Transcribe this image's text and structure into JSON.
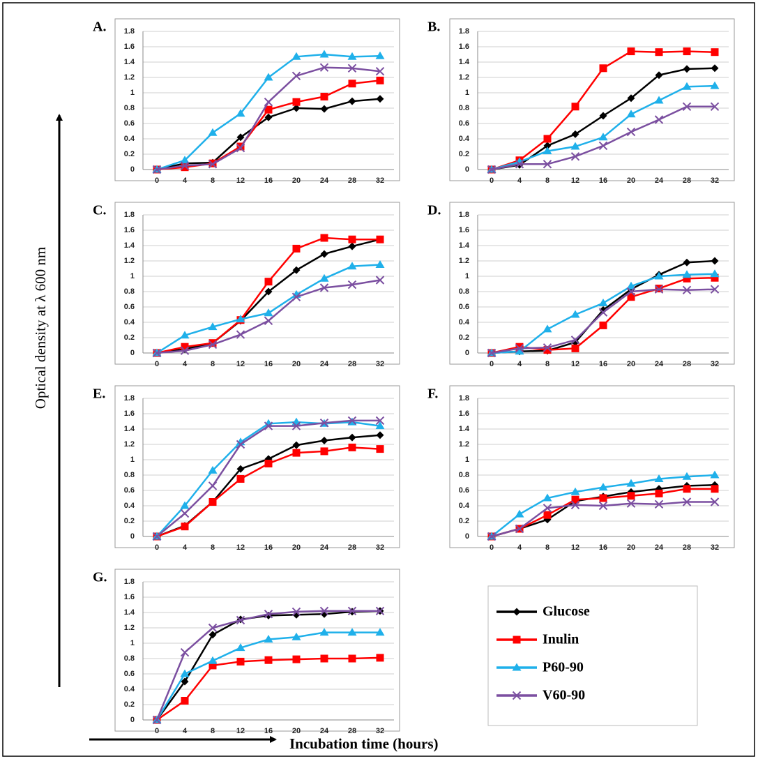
{
  "y_label": "Optical density at λ 600 nm",
  "x_label": "Incubation time (hours)",
  "legend": {
    "series": [
      {
        "name": "Glucose",
        "color": "#000000",
        "marker": "diamond"
      },
      {
        "name": "Inulin",
        "color": "#ff0000",
        "marker": "square"
      },
      {
        "name": "P60-90",
        "color": "#1fb0ea",
        "marker": "triangle"
      },
      {
        "name": "V60-90",
        "color": "#7b4fa0",
        "marker": "x"
      }
    ]
  },
  "chart_data": [
    {
      "type": "line",
      "title": "A.",
      "categories": [
        0,
        4,
        8,
        12,
        16,
        20,
        24,
        28,
        32
      ],
      "ylim": [
        0,
        1.8
      ],
      "yticks": [
        0,
        0.2,
        0.4,
        0.6,
        0.8,
        1,
        1.2,
        1.4,
        1.6,
        1.8
      ],
      "grid": true,
      "series": [
        {
          "values": [
            0,
            0.08,
            0.09,
            0.42,
            0.68,
            0.8,
            0.79,
            0.89,
            0.92
          ]
        },
        {
          "values": [
            0,
            0.03,
            0.08,
            0.3,
            0.78,
            0.88,
            0.95,
            1.12,
            1.16
          ]
        },
        {
          "values": [
            0,
            0.12,
            0.48,
            0.73,
            1.2,
            1.47,
            1.5,
            1.47,
            1.48
          ]
        },
        {
          "values": [
            0,
            0.05,
            0.07,
            0.28,
            0.88,
            1.22,
            1.33,
            1.32,
            1.28
          ]
        }
      ]
    },
    {
      "type": "line",
      "title": "B.",
      "categories": [
        0,
        4,
        8,
        12,
        16,
        20,
        24,
        28,
        32
      ],
      "ylim": [
        0,
        1.8
      ],
      "yticks": [
        0,
        0.2,
        0.4,
        0.6,
        0.8,
        1,
        1.2,
        1.4,
        1.6,
        1.8
      ],
      "grid": true,
      "series": [
        {
          "values": [
            0,
            0.06,
            0.31,
            0.46,
            0.7,
            0.93,
            1.23,
            1.31,
            1.32
          ]
        },
        {
          "values": [
            0,
            0.12,
            0.4,
            0.82,
            1.32,
            1.54,
            1.53,
            1.54,
            1.53
          ]
        },
        {
          "values": [
            0,
            0.1,
            0.24,
            0.3,
            0.42,
            0.72,
            0.9,
            1.08,
            1.09
          ]
        },
        {
          "values": [
            0,
            0.07,
            0.07,
            0.17,
            0.31,
            0.49,
            0.65,
            0.82,
            0.82
          ]
        }
      ]
    },
    {
      "type": "line",
      "title": "C.",
      "categories": [
        0,
        4,
        8,
        12,
        16,
        20,
        24,
        28,
        32
      ],
      "ylim": [
        0,
        1.8
      ],
      "yticks": [
        0,
        0.2,
        0.4,
        0.6,
        0.8,
        1,
        1.2,
        1.4,
        1.6,
        1.8
      ],
      "grid": true,
      "series": [
        {
          "values": [
            0,
            0.05,
            0.13,
            0.42,
            0.8,
            1.08,
            1.29,
            1.39,
            1.48
          ]
        },
        {
          "values": [
            0,
            0.08,
            0.13,
            0.43,
            0.93,
            1.36,
            1.5,
            1.48,
            1.48
          ]
        },
        {
          "values": [
            0,
            0.23,
            0.34,
            0.44,
            0.52,
            0.76,
            0.97,
            1.13,
            1.15
          ]
        },
        {
          "values": [
            0,
            0.03,
            0.11,
            0.24,
            0.42,
            0.73,
            0.85,
            0.89,
            0.95
          ]
        }
      ]
    },
    {
      "type": "line",
      "title": "D.",
      "categories": [
        0,
        4,
        8,
        12,
        16,
        20,
        24,
        28,
        32
      ],
      "ylim": [
        0,
        1.8
      ],
      "yticks": [
        0,
        0.2,
        0.4,
        0.6,
        0.8,
        1,
        1.2,
        1.4,
        1.6,
        1.8
      ],
      "grid": true,
      "series": [
        {
          "values": [
            0,
            0.02,
            0.03,
            0.14,
            0.56,
            0.83,
            1.02,
            1.18,
            1.2
          ]
        },
        {
          "values": [
            0,
            0.08,
            0.04,
            0.06,
            0.36,
            0.73,
            0.84,
            0.97,
            0.98
          ]
        },
        {
          "values": [
            0,
            0.02,
            0.31,
            0.5,
            0.65,
            0.87,
            1,
            1.02,
            1.03
          ]
        },
        {
          "values": [
            0,
            0.06,
            0.07,
            0.17,
            0.53,
            0.8,
            0.83,
            0.82,
            0.83
          ]
        }
      ]
    },
    {
      "type": "line",
      "title": "E.",
      "categories": [
        0,
        4,
        8,
        12,
        16,
        20,
        24,
        28,
        32
      ],
      "ylim": [
        0,
        1.8
      ],
      "yticks": [
        0,
        0.2,
        0.4,
        0.6,
        0.8,
        1,
        1.2,
        1.4,
        1.6,
        1.8
      ],
      "grid": true,
      "series": [
        {
          "values": [
            0,
            0.14,
            0.45,
            0.88,
            1.01,
            1.19,
            1.25,
            1.29,
            1.32
          ]
        },
        {
          "values": [
            0,
            0.13,
            0.45,
            0.75,
            0.95,
            1.09,
            1.11,
            1.16,
            1.14
          ]
        },
        {
          "values": [
            0,
            0.4,
            0.86,
            1.23,
            1.47,
            1.49,
            1.47,
            1.49,
            1.44
          ]
        },
        {
          "values": [
            0,
            0.3,
            0.66,
            1.2,
            1.44,
            1.44,
            1.48,
            1.51,
            1.51
          ]
        }
      ]
    },
    {
      "type": "line",
      "title": "F.",
      "categories": [
        0,
        4,
        8,
        12,
        16,
        20,
        24,
        28,
        32
      ],
      "ylim": [
        0,
        1.8
      ],
      "yticks": [
        0,
        0.2,
        0.4,
        0.6,
        0.8,
        1,
        1.2,
        1.4,
        1.6,
        1.8
      ],
      "grid": true,
      "series": [
        {
          "values": [
            0,
            0.1,
            0.22,
            0.46,
            0.52,
            0.58,
            0.62,
            0.66,
            0.67
          ]
        },
        {
          "values": [
            0,
            0.1,
            0.28,
            0.48,
            0.5,
            0.53,
            0.56,
            0.62,
            0.62
          ]
        },
        {
          "values": [
            0,
            0.29,
            0.5,
            0.58,
            0.64,
            0.69,
            0.75,
            0.78,
            0.8
          ]
        },
        {
          "values": [
            0,
            0.1,
            0.37,
            0.41,
            0.4,
            0.43,
            0.42,
            0.45,
            0.45
          ]
        }
      ]
    },
    {
      "type": "line",
      "title": "G.",
      "categories": [
        0,
        4,
        8,
        12,
        16,
        20,
        24,
        28,
        32
      ],
      "ylim": [
        0,
        1.8
      ],
      "yticks": [
        0,
        0.2,
        0.4,
        0.6,
        0.8,
        1,
        1.2,
        1.4,
        1.6,
        1.8
      ],
      "grid": true,
      "series": [
        {
          "values": [
            0,
            0.5,
            1.11,
            1.31,
            1.36,
            1.37,
            1.38,
            1.41,
            1.42
          ]
        },
        {
          "values": [
            0,
            0.25,
            0.71,
            0.76,
            0.78,
            0.79,
            0.8,
            0.8,
            0.81
          ]
        },
        {
          "values": [
            0,
            0.6,
            0.77,
            0.94,
            1.05,
            1.08,
            1.14,
            1.14,
            1.14
          ]
        },
        {
          "values": [
            0,
            0.88,
            1.2,
            1.3,
            1.38,
            1.41,
            1.42,
            1.42,
            1.42
          ]
        }
      ]
    }
  ]
}
